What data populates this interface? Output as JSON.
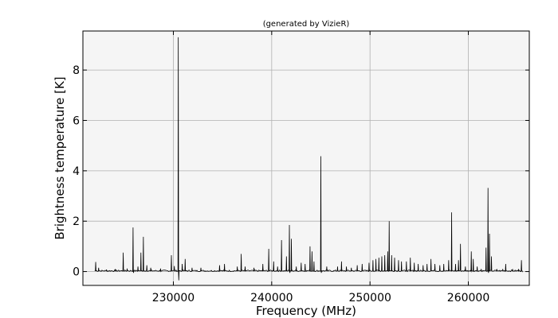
{
  "chart_data": {
    "type": "line",
    "title": "(generated by VizieR)",
    "xlabel": "Frequency (MHz)",
    "ylabel": "Brightness temperature [K]",
    "xlim": [
      220800,
      266200
    ],
    "ylim": [
      -0.55,
      9.55
    ],
    "x_ticks": [
      230000,
      240000,
      250000,
      260000
    ],
    "x_tick_labels": [
      "230000",
      "240000",
      "250000",
      "260000"
    ],
    "y_ticks": [
      0,
      2,
      4,
      6,
      8
    ],
    "y_tick_labels": [
      "0",
      "2",
      "4",
      "6",
      "8"
    ],
    "grid": true,
    "legend": "none",
    "x_range": [
      222000,
      265500
    ],
    "baseline": 0.03,
    "series": [
      {
        "peaks": [
          [
            222100,
            0.38
          ],
          [
            222400,
            0.15
          ],
          [
            223200,
            0.08
          ],
          [
            224100,
            0.1
          ],
          [
            224900,
            0.75
          ],
          [
            225300,
            0.12
          ],
          [
            225900,
            1.75
          ],
          [
            226400,
            0.2
          ],
          [
            226700,
            0.75
          ],
          [
            226950,
            1.38
          ],
          [
            227300,
            0.25
          ],
          [
            227700,
            0.15
          ],
          [
            228700,
            0.12
          ],
          [
            229800,
            0.65
          ],
          [
            230100,
            0.22
          ],
          [
            230500,
            9.3
          ],
          [
            230900,
            0.3
          ],
          [
            231200,
            0.5
          ],
          [
            231900,
            0.15
          ],
          [
            232800,
            0.15
          ],
          [
            234700,
            0.25
          ],
          [
            235200,
            0.3
          ],
          [
            236500,
            0.2
          ],
          [
            236900,
            0.7
          ],
          [
            237300,
            0.2
          ],
          [
            238200,
            0.15
          ],
          [
            239100,
            0.3
          ],
          [
            239700,
            0.9
          ],
          [
            240200,
            0.4
          ],
          [
            240600,
            0.2
          ],
          [
            241000,
            1.25
          ],
          [
            241500,
            0.6
          ],
          [
            241800,
            1.85
          ],
          [
            242000,
            1.3
          ],
          [
            242500,
            0.2
          ],
          [
            243000,
            0.35
          ],
          [
            243400,
            0.3
          ],
          [
            243900,
            1.0
          ],
          [
            244100,
            0.8
          ],
          [
            244300,
            0.4
          ],
          [
            245000,
            4.58
          ],
          [
            245600,
            0.2
          ],
          [
            246700,
            0.2
          ],
          [
            247100,
            0.4
          ],
          [
            247600,
            0.2
          ],
          [
            248100,
            0.15
          ],
          [
            248700,
            0.25
          ],
          [
            249200,
            0.3
          ],
          [
            249900,
            0.35
          ],
          [
            250300,
            0.45
          ],
          [
            250600,
            0.5
          ],
          [
            250900,
            0.55
          ],
          [
            251200,
            0.6
          ],
          [
            251500,
            0.65
          ],
          [
            251800,
            0.8
          ],
          [
            251950,
            2.0
          ],
          [
            252200,
            0.65
          ],
          [
            252500,
            0.55
          ],
          [
            252900,
            0.45
          ],
          [
            253200,
            0.4
          ],
          [
            253700,
            0.4
          ],
          [
            254100,
            0.55
          ],
          [
            254500,
            0.35
          ],
          [
            254900,
            0.3
          ],
          [
            255400,
            0.25
          ],
          [
            255800,
            0.3
          ],
          [
            256200,
            0.5
          ],
          [
            256600,
            0.3
          ],
          [
            257100,
            0.25
          ],
          [
            257500,
            0.3
          ],
          [
            258000,
            0.45
          ],
          [
            258300,
            2.35
          ],
          [
            258700,
            0.3
          ],
          [
            259000,
            0.45
          ],
          [
            259200,
            1.1
          ],
          [
            259700,
            0.2
          ],
          [
            260300,
            0.8
          ],
          [
            260500,
            0.5
          ],
          [
            260900,
            0.2
          ],
          [
            261300,
            0.1
          ],
          [
            261800,
            0.95
          ],
          [
            262000,
            3.32
          ],
          [
            262150,
            1.5
          ],
          [
            262350,
            0.6
          ],
          [
            262900,
            0.1
          ],
          [
            263500,
            0.1
          ],
          [
            263800,
            0.3
          ],
          [
            264500,
            0.1
          ],
          [
            265100,
            0.1
          ],
          [
            265400,
            0.45
          ]
        ],
        "dips": [
          [
            230550,
            -0.35
          ],
          [
            225950,
            -0.05
          ],
          [
            241850,
            -0.05
          ],
          [
            245050,
            -0.05
          ],
          [
            262050,
            -0.05
          ]
        ]
      }
    ]
  }
}
